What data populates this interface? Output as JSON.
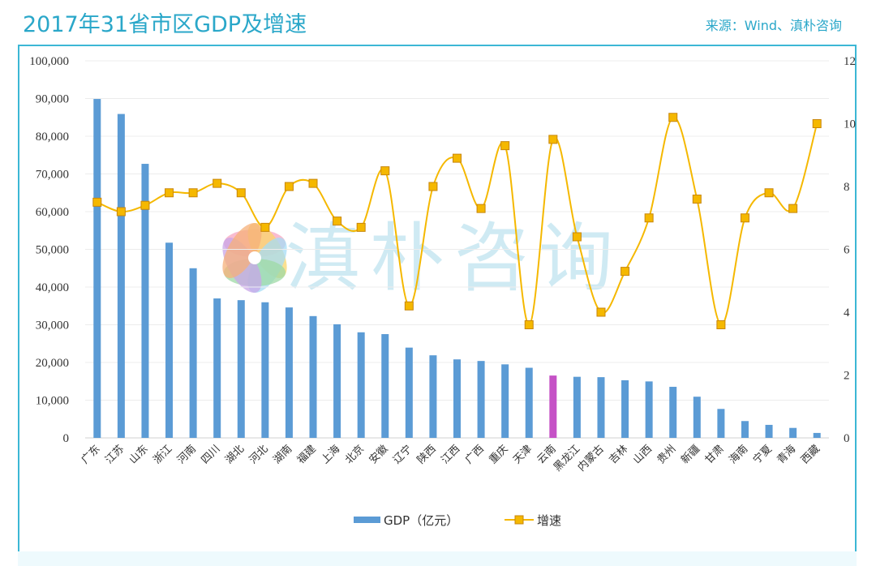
{
  "title": "2017年31省市区GDP及增速",
  "source": "来源：Wind、滇朴咨询",
  "watermark": "滇朴咨询",
  "chart_data": {
    "type": "bar+line",
    "categories": [
      "广东",
      "江苏",
      "山东",
      "浙江",
      "河南",
      "四川",
      "湖北",
      "河北",
      "湖南",
      "福建",
      "上海",
      "北京",
      "安徽",
      "辽宁",
      "陕西",
      "江西",
      "广西",
      "重庆",
      "天津",
      "云南",
      "黑龙江",
      "内蒙古",
      "吉林",
      "山西",
      "贵州",
      "新疆",
      "甘肃",
      "海南",
      "宁夏",
      "青海",
      "西藏"
    ],
    "series": [
      {
        "name": "GDP（亿元）",
        "type": "bar",
        "axis": "left",
        "color": "#5b9bd5",
        "highlight": {
          "category": "云南",
          "color": "#c552c6"
        },
        "values": [
          89879,
          85901,
          72678,
          51768,
          44988,
          36980,
          36523,
          35964,
          34591,
          32298,
          30133,
          28000,
          27518,
          23942,
          21899,
          20818,
          20396,
          19500,
          18595,
          16531,
          16200,
          16103,
          15289,
          14974,
          13541,
          10920,
          7677,
          4463,
          3454,
          2643,
          1311
        ]
      },
      {
        "name": "增速",
        "type": "line",
        "axis": "right",
        "color": "#f5b800",
        "marker": "square",
        "values": [
          7.5,
          7.2,
          7.4,
          7.8,
          7.8,
          8.1,
          7.8,
          6.7,
          8.0,
          8.1,
          6.9,
          6.7,
          8.5,
          4.2,
          8.0,
          8.9,
          7.3,
          9.3,
          3.6,
          9.5,
          6.4,
          4.0,
          5.3,
          7.0,
          10.2,
          7.6,
          3.6,
          7.0,
          7.8,
          7.3,
          10.0
        ]
      }
    ],
    "yleft": {
      "range": [
        0,
        100000
      ],
      "ticks": [
        "0",
        "10,000",
        "20,000",
        "30,000",
        "40,000",
        "50,000",
        "60,000",
        "70,000",
        "80,000",
        "90,000",
        "100,000"
      ]
    },
    "yright": {
      "range": [
        0,
        12
      ],
      "ticks": [
        "0",
        "2",
        "4",
        "6",
        "8",
        "10",
        "12"
      ]
    },
    "grid": true,
    "legend": "bottom"
  }
}
